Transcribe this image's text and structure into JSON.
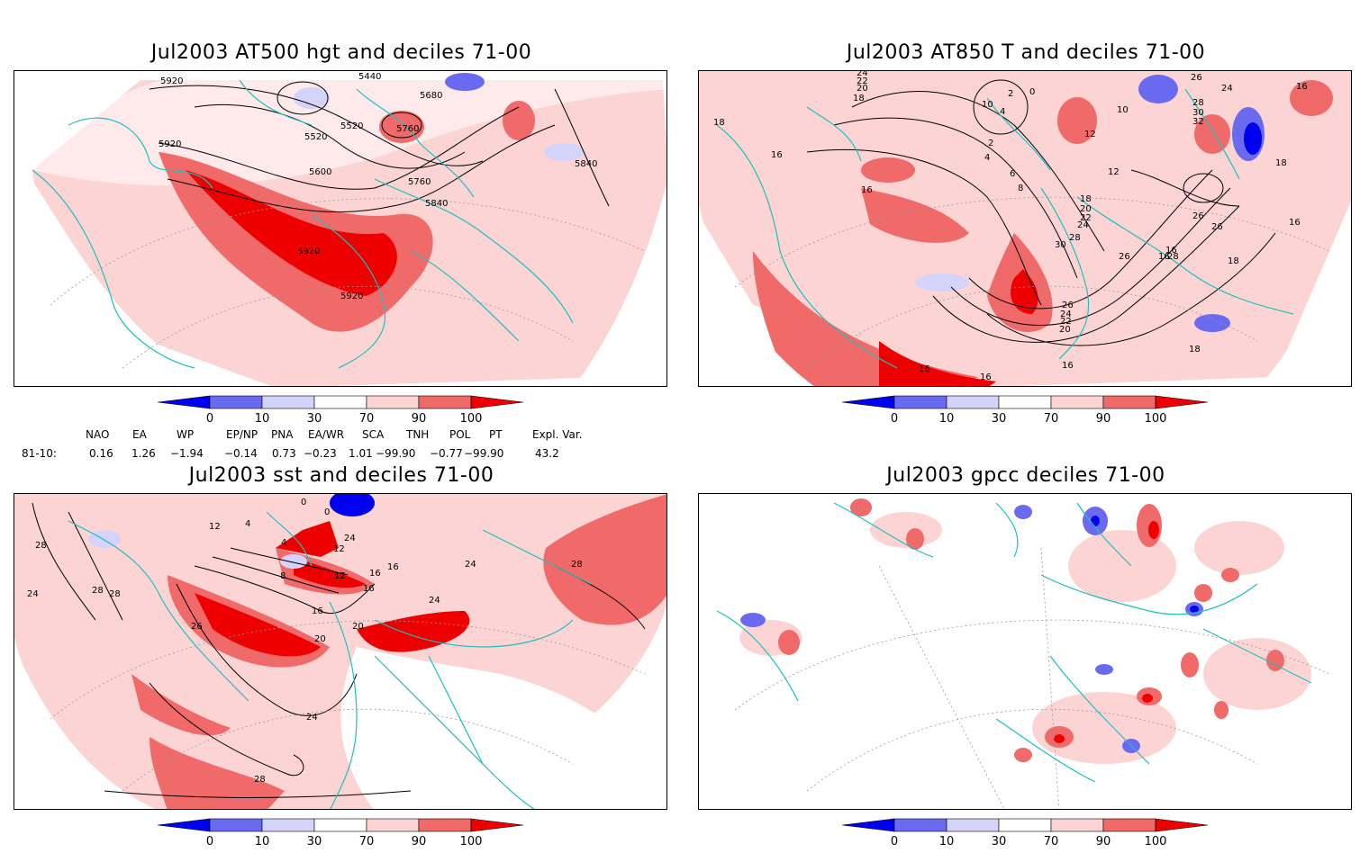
{
  "panels": [
    {
      "title": "Jul2003 AT500 hgt and deciles 71-00"
    },
    {
      "title": "Jul2003 AT850 T and deciles 71-00"
    },
    {
      "title": "Jul2003 sst and deciles 71-00"
    },
    {
      "title": "Jul2003 gpcc deciles 71-00"
    }
  ],
  "colorbar": {
    "labels": [
      "0",
      "10",
      "30",
      "70",
      "90",
      "100"
    ],
    "colors": [
      "#0000ee",
      "#6a6af0",
      "#d4d4fb",
      "#ffffff",
      "#fdd4d4",
      "#f06a6a",
      "#ee0000"
    ]
  },
  "contour_labels": {
    "hgt": [
      "5920",
      "5440",
      "5680",
      "5520",
      "5520",
      "5760",
      "5600",
      "5760",
      "5840",
      "5840",
      "5920",
      "5920",
      "5920"
    ],
    "t850": [
      "24",
      "22",
      "20",
      "18",
      "2",
      "10",
      "4",
      "0",
      "26",
      "24",
      "18",
      "10",
      "12",
      "2",
      "4",
      "6",
      "8",
      "12",
      "16",
      "16",
      "18",
      "20",
      "22",
      "24",
      "28",
      "30",
      "26",
      "24",
      "22",
      "20",
      "26",
      "28",
      "26",
      "16",
      "32",
      "30",
      "28",
      "26",
      "16",
      "18",
      "16",
      "16",
      "16",
      "16",
      "18",
      "18",
      "16"
    ],
    "sst": [
      "12",
      "28",
      "28",
      "28",
      "24",
      "26",
      "24",
      "28",
      "16",
      "20",
      "16",
      "20",
      "24",
      "24",
      "4",
      "4",
      "8",
      "12",
      "16",
      "12",
      "16",
      "24",
      "28",
      "0",
      "0"
    ]
  },
  "indices": {
    "header": [
      "NAO",
      "EA",
      "WP",
      "EP/NP",
      "PNA",
      "EA/WR",
      "SCA",
      "TNH",
      "POL",
      "PT",
      "Expl. Var."
    ],
    "row_label": "81-10:",
    "values": [
      "0.16",
      "1.26",
      "−1.94",
      "−0.14",
      "0.73",
      "−0.23",
      "1.01",
      "−99.90",
      "−0.77",
      "−99.90",
      "43.2"
    ]
  }
}
